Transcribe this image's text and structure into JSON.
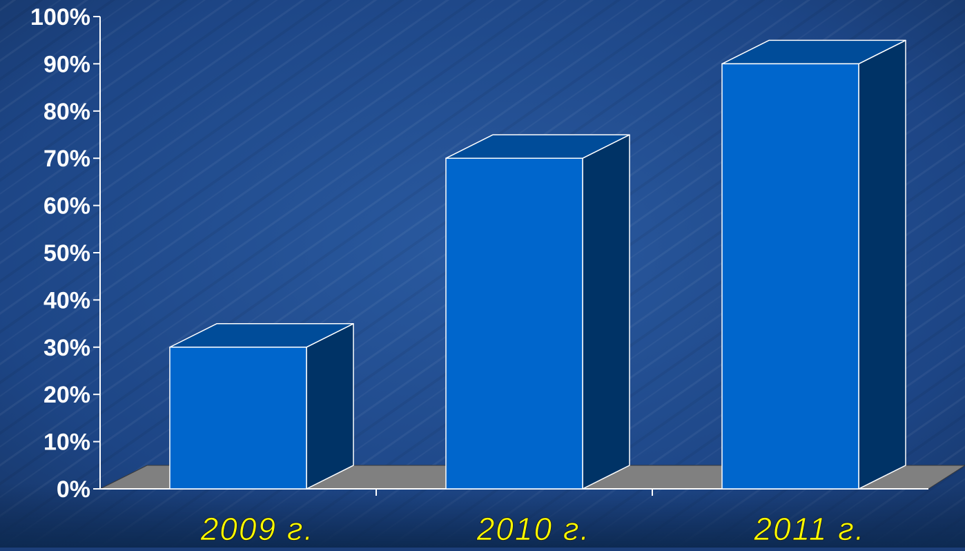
{
  "colors": {
    "background": "#1c3f7a",
    "bar_front": "#0066cc",
    "bar_top": "#004c99",
    "bar_side": "#003366",
    "floor": "#808080",
    "axis": "#ffffff",
    "ytick_text": "#ffffff",
    "xtick_text": "#ffff00"
  },
  "chart_data": {
    "type": "bar",
    "style": "3d-column",
    "categories": [
      "2009 г.",
      "2010 г.",
      "2011 г."
    ],
    "values": [
      30,
      70,
      90
    ],
    "ylim": [
      0,
      100
    ],
    "yticks": [
      "0%",
      "10%",
      "20%",
      "30%",
      "40%",
      "50%",
      "60%",
      "70%",
      "80%",
      "90%",
      "100%"
    ],
    "title": "",
    "xlabel": "",
    "ylabel": "",
    "legend": "none",
    "grid": false
  }
}
